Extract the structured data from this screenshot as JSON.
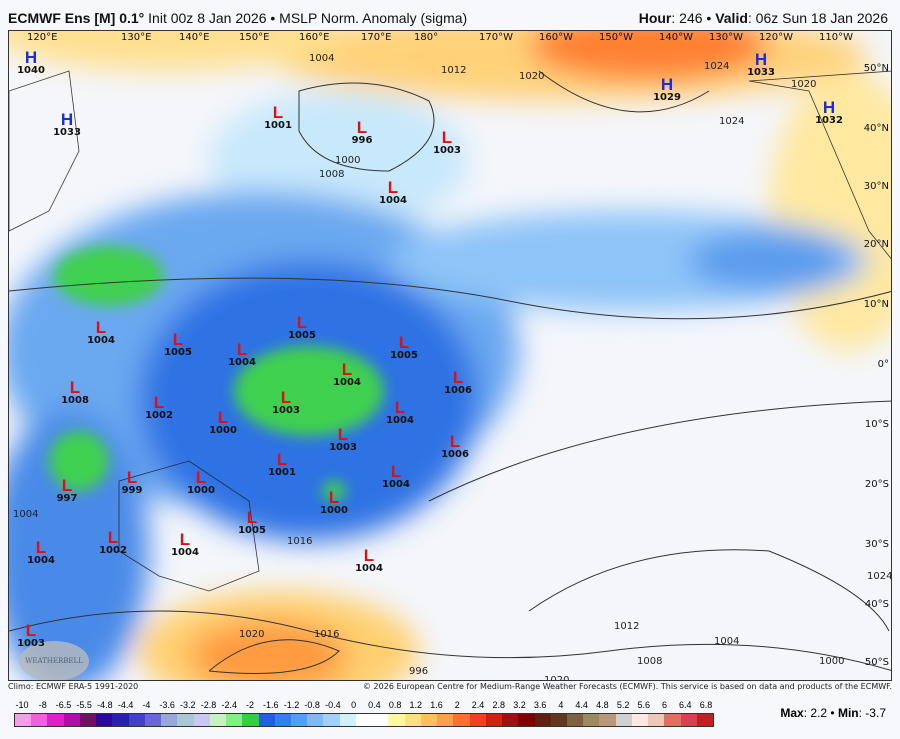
{
  "header": {
    "model": "ECMWF Ens [M]",
    "resolution": "0.1°",
    "init": "Init 00z 8 Jan 2026",
    "separator": "•",
    "product": "MSLP Norm. Anomaly (sigma)",
    "hour_label": "Hour",
    "hour": ": 246",
    "valid_label": "Valid",
    "valid": ": 06z Sun 18 Jan 2026"
  },
  "map": {
    "longitude_labels": [
      "120°E",
      "130°E",
      "140°E",
      "150°E",
      "160°E",
      "170°E",
      "180°",
      "170°W",
      "160°W",
      "150°W",
      "140°W",
      "130°W",
      "120°W",
      "110°W"
    ],
    "latitude_labels": [
      "50°N",
      "40°N",
      "30°N",
      "20°N",
      "10°N",
      "0°",
      "10°S",
      "20°S",
      "30°S",
      "40°S",
      "50°S"
    ],
    "pressure_centers": [
      {
        "type": "H",
        "value": "1040"
      },
      {
        "type": "H",
        "value": "1033"
      },
      {
        "type": "L",
        "value": "1001"
      },
      {
        "type": "L",
        "value": "996"
      },
      {
        "type": "L",
        "value": "1003"
      },
      {
        "type": "L",
        "value": "1004"
      },
      {
        "type": "H",
        "value": "1029"
      },
      {
        "type": "H",
        "value": "1033"
      },
      {
        "type": "H",
        "value": "1032"
      },
      {
        "type": "L",
        "value": "1004"
      },
      {
        "type": "L",
        "value": "1005"
      },
      {
        "type": "L",
        "value": "1004"
      },
      {
        "type": "L",
        "value": "1005"
      },
      {
        "type": "L",
        "value": "1005"
      },
      {
        "type": "L",
        "value": "1004"
      },
      {
        "type": "L",
        "value": "1006"
      },
      {
        "type": "L",
        "value": "1003"
      },
      {
        "type": "L",
        "value": "1002"
      },
      {
        "type": "L",
        "value": "1008"
      },
      {
        "type": "L",
        "value": "1000"
      },
      {
        "type": "L",
        "value": "1004"
      },
      {
        "type": "L",
        "value": "1003"
      },
      {
        "type": "L",
        "value": "1006"
      },
      {
        "type": "L",
        "value": "1001"
      },
      {
        "type": "L",
        "value": "999"
      },
      {
        "type": "L",
        "value": "1000"
      },
      {
        "type": "L",
        "value": "997"
      },
      {
        "type": "L",
        "value": "1004"
      },
      {
        "type": "L",
        "value": "1000"
      },
      {
        "type": "L",
        "value": "1005"
      },
      {
        "type": "L",
        "value": "1002"
      },
      {
        "type": "L",
        "value": "1004"
      },
      {
        "type": "L",
        "value": "1004"
      },
      {
        "type": "L",
        "value": "1004"
      },
      {
        "type": "L",
        "value": "1003"
      }
    ],
    "contour_labels": [
      "1004",
      "1012",
      "1020",
      "1024",
      "1000",
      "1008",
      "1024",
      "1020",
      "1004",
      "1016",
      "1020",
      "1016",
      "1012",
      "1004",
      "1008",
      "996",
      "1020",
      "1000",
      "1024"
    ],
    "colors": {
      "high": "#1a2fd6",
      "low": "#e01010"
    }
  },
  "credits": {
    "climo": "Climo: ECMWF ERA-5 1991-2020",
    "copyright": "© 2026 European Centre for Medium-Range Weather Forecasts (ECMWF). This service is based on data and products of the ECMWF."
  },
  "logo_text": "WEATHERBELL",
  "colorbar": {
    "labels": [
      "-10",
      "-8",
      "-6.5",
      "-5.5",
      "-4.8",
      "-4.4",
      "-4",
      "-3.6",
      "-3.2",
      "-2.8",
      "-2.4",
      "-2",
      "-1.6",
      "-1.2",
      "-0.8",
      "-0.4",
      "0",
      "0.4",
      "0.8",
      "1.2",
      "1.6",
      "2",
      "2.4",
      "2.8",
      "3.2",
      "3.6",
      "4",
      "4.4",
      "4.8",
      "5.2",
      "5.6",
      "6",
      "6.4",
      "6.8"
    ],
    "colors": [
      "#f4a0e8",
      "#f060e0",
      "#e020c8",
      "#b010a8",
      "#701060",
      "#2a0a9a",
      "#2a20b0",
      "#4040c8",
      "#6868d8",
      "#98a8d8",
      "#a8c8d8",
      "#c8c8f0",
      "#c8f0c0",
      "#80f080",
      "#30d040",
      "#2060e0",
      "#3080f0",
      "#50a0f8",
      "#80b8f8",
      "#a0d0f8",
      "#d0f0fc",
      "#ffffff",
      "#ffffff",
      "#fff8a0",
      "#ffe080",
      "#ffc060",
      "#ffa050",
      "#ff7030",
      "#f04020",
      "#d02010",
      "#a01010",
      "#800000",
      "#602010",
      "#603820",
      "#806040",
      "#a08860",
      "#b89878",
      "#d0d0d0",
      "#ffe8e0",
      "#f0c8b8",
      "#e07060",
      "#d84050",
      "#c02020"
    ]
  },
  "stats": {
    "max_label": "Max",
    "max": ": 2.2",
    "sep": " • ",
    "min_label": "Min",
    "min": ": -3.7"
  }
}
